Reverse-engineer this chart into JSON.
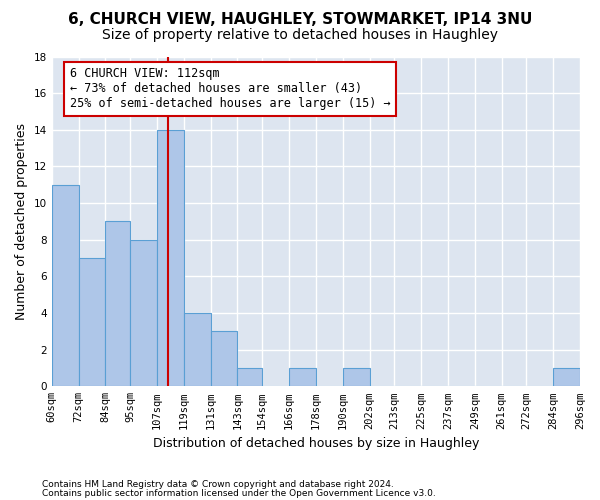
{
  "title_line1": "6, CHURCH VIEW, HAUGHLEY, STOWMARKET, IP14 3NU",
  "title_line2": "Size of property relative to detached houses in Haughley",
  "xlabel": "Distribution of detached houses by size in Haughley",
  "ylabel": "Number of detached properties",
  "footnote1": "Contains HM Land Registry data © Crown copyright and database right 2024.",
  "footnote2": "Contains public sector information licensed under the Open Government Licence v3.0.",
  "bar_values": [
    11,
    7,
    9,
    8,
    14,
    4,
    3,
    1,
    0,
    1,
    0,
    1,
    0,
    0,
    0,
    0,
    0,
    0,
    0,
    1
  ],
  "bin_edges": [
    60,
    72,
    84,
    95,
    107,
    119,
    131,
    143,
    154,
    166,
    178,
    190,
    202,
    213,
    225,
    237,
    249,
    261,
    272,
    284,
    296
  ],
  "tick_labels": [
    "60sqm",
    "72sqm",
    "84sqm",
    "95sqm",
    "107sqm",
    "119sqm",
    "131sqm",
    "143sqm",
    "154sqm",
    "166sqm",
    "178sqm",
    "190sqm",
    "202sqm",
    "213sqm",
    "225sqm",
    "237sqm",
    "249sqm",
    "261sqm",
    "272sqm",
    "284sqm",
    "296sqm"
  ],
  "bar_color": "#aec6e8",
  "bar_edge_color": "#5a9fd4",
  "vline_x": 112,
  "vline_color": "#cc0000",
  "annotation_text": "6 CHURCH VIEW: 112sqm\n← 73% of detached houses are smaller (43)\n25% of semi-detached houses are larger (15) →",
  "annotation_box_color": "#cc0000",
  "ylim": [
    0,
    18
  ],
  "yticks": [
    0,
    2,
    4,
    6,
    8,
    10,
    12,
    14,
    16,
    18
  ],
  "bg_color": "#dde5f0",
  "grid_color": "#ffffff",
  "title1_fontsize": 11,
  "title2_fontsize": 10,
  "xlabel_fontsize": 9,
  "ylabel_fontsize": 9,
  "tick_fontsize": 7.5,
  "annotation_fontsize": 8.5
}
